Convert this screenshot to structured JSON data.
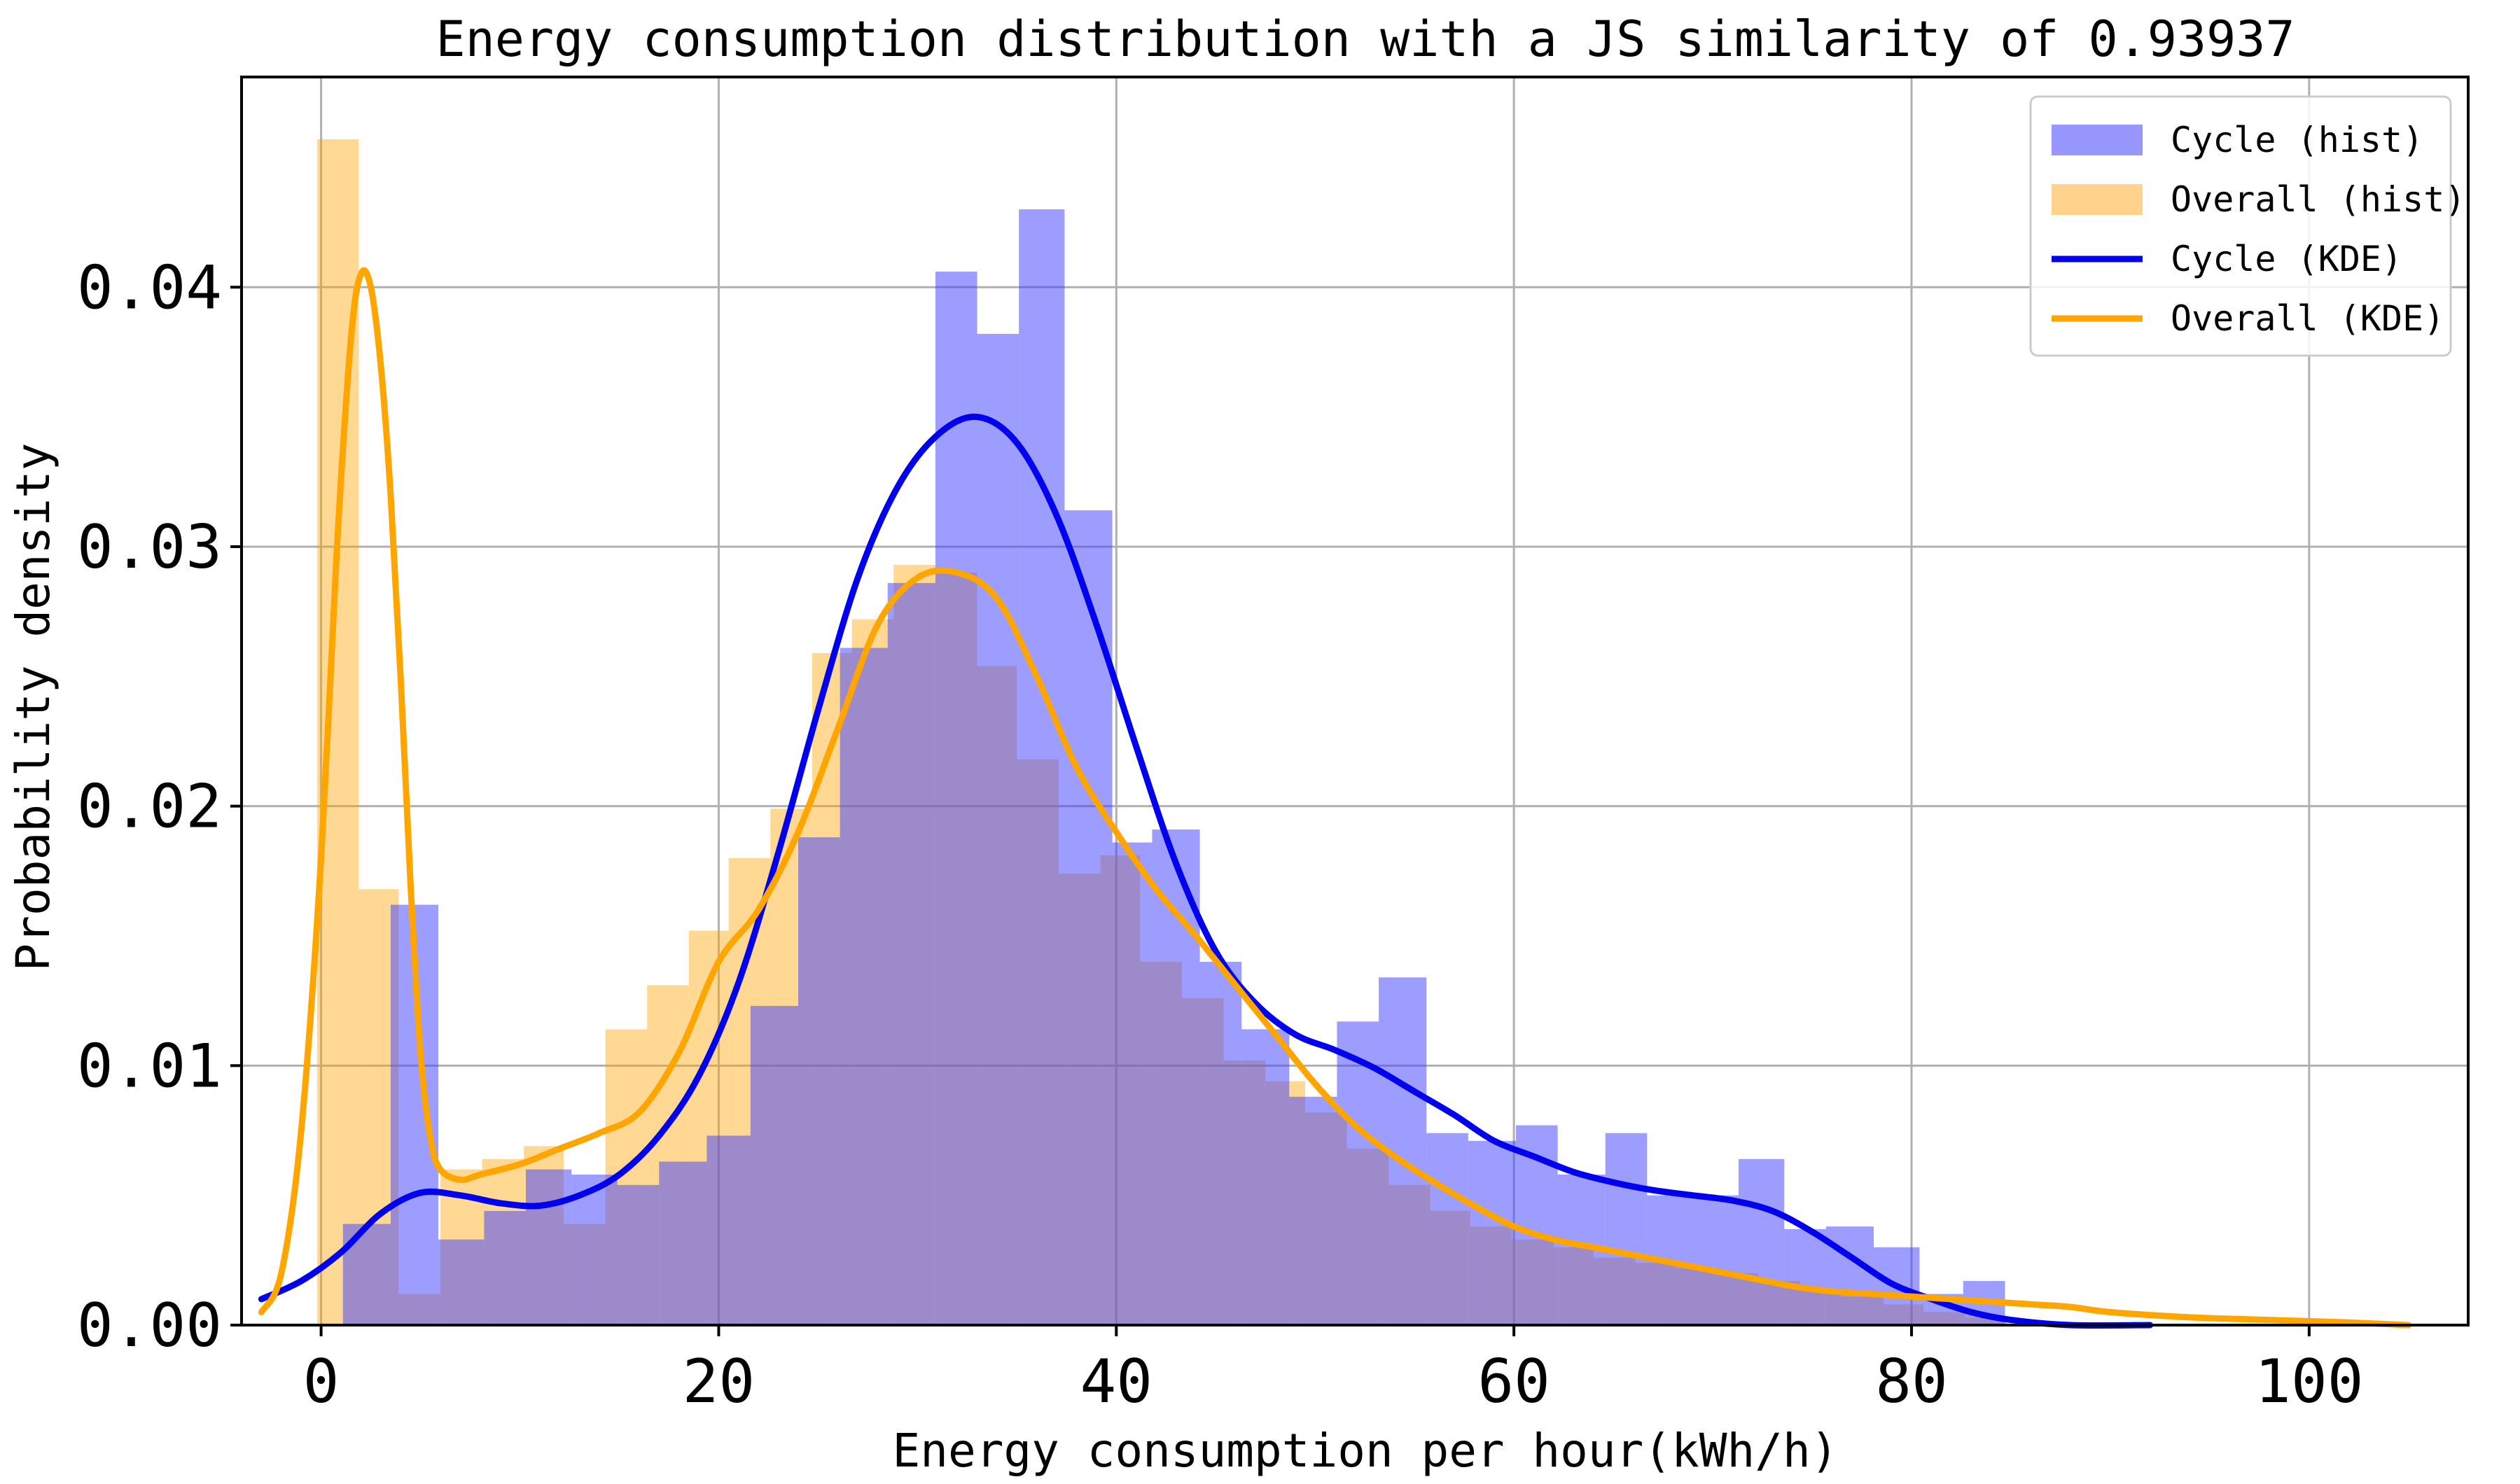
{
  "chart_data": {
    "type": "bar",
    "title": "Energy consumption distribution with a JS similarity of 0.93937",
    "xlabel": "Energy consumption per hour(kWh/h)",
    "ylabel": "Probability density",
    "xlim": [
      -4,
      108
    ],
    "ylim": [
      0,
      0.0481
    ],
    "xticks": [
      0,
      20,
      40,
      60,
      80,
      100
    ],
    "xtick_labels": [
      "0",
      "20",
      "40",
      "60",
      "80",
      "100"
    ],
    "yticks": [
      0.0,
      0.01,
      0.02,
      0.03,
      0.04
    ],
    "ytick_labels": [
      "0.00",
      "0.01",
      "0.02",
      "0.03",
      "0.04"
    ],
    "grid": true,
    "legend_position": "top-right",
    "legend": [
      {
        "label": "Cycle (hist)",
        "kind": "patch",
        "color": "#6b6bff"
      },
      {
        "label": "Overall (hist)",
        "kind": "patch",
        "color": "#ffc05a"
      },
      {
        "label": "Cycle (KDE)",
        "kind": "line",
        "color": "#0000ee"
      },
      {
        "label": "Overall (KDE)",
        "kind": "line",
        "color": "#ffa500"
      }
    ],
    "histograms": [
      {
        "name": "Overall (hist)",
        "color": "#ffa500",
        "opacity": 0.42,
        "bin_edges": [
          -0.2,
          1.9,
          3.9,
          6.0,
          8.1,
          10.2,
          12.2,
          14.3,
          16.4,
          18.5,
          20.5,
          22.6,
          24.7,
          26.7,
          28.8,
          30.9,
          33.0,
          35.0,
          37.1,
          39.2,
          41.2,
          43.3,
          45.4,
          47.5,
          49.5,
          51.6,
          53.7,
          55.8,
          57.8,
          59.9,
          62.0,
          64.0,
          66.1,
          68.2,
          70.3,
          72.3,
          74.4,
          76.5,
          78.6,
          80.6,
          82.7,
          84.8
        ],
        "values": [
          0.0457,
          0.0168,
          0.0012,
          0.006,
          0.0064,
          0.0069,
          0.0039,
          0.0114,
          0.0131,
          0.0152,
          0.018,
          0.0199,
          0.0259,
          0.0272,
          0.0293,
          0.029,
          0.0254,
          0.0218,
          0.0174,
          0.0181,
          0.014,
          0.0126,
          0.0102,
          0.0094,
          0.0082,
          0.0068,
          0.0054,
          0.0044,
          0.0038,
          0.0033,
          0.003,
          0.0026,
          0.0024,
          0.0022,
          0.002,
          0.0017,
          0.0014,
          0.0011,
          0.0008,
          0.0005,
          0.0003
        ]
      },
      {
        "name": "Cycle (hist)",
        "color": "#3b3bff",
        "opacity": 0.5,
        "bin_edges": [
          1.1,
          3.5,
          5.9,
          8.2,
          10.3,
          12.6,
          14.9,
          17.0,
          19.4,
          21.6,
          24.0,
          26.1,
          28.5,
          30.9,
          33.0,
          35.1,
          37.4,
          39.8,
          41.8,
          44.2,
          46.3,
          48.7,
          51.1,
          53.2,
          55.6,
          57.7,
          60.1,
          62.2,
          64.6,
          66.7,
          69.1,
          71.3,
          73.6,
          75.7,
          78.1,
          80.4,
          82.6,
          84.7
        ],
        "values": [
          0.0039,
          0.0162,
          0.0033,
          0.0044,
          0.006,
          0.0058,
          0.0054,
          0.0063,
          0.0073,
          0.0123,
          0.0188,
          0.0261,
          0.0286,
          0.0406,
          0.0382,
          0.043,
          0.0314,
          0.0186,
          0.0191,
          0.014,
          0.0114,
          0.0088,
          0.0117,
          0.0134,
          0.0074,
          0.0071,
          0.0077,
          0.0058,
          0.0074,
          0.005,
          0.005,
          0.0064,
          0.0037,
          0.0038,
          0.003,
          0.0012,
          0.0017
        ]
      }
    ],
    "kde": [
      {
        "name": "Cycle (KDE)",
        "color": "#0000ee",
        "x": [
          -3.0,
          -1.0,
          1.0,
          3.0,
          5.0,
          7.0,
          9.0,
          11.0,
          13.0,
          15.0,
          17.0,
          19.0,
          21.0,
          23.0,
          25.0,
          27.0,
          29.0,
          31.0,
          33.0,
          35.0,
          37.0,
          39.0,
          41.0,
          43.0,
          45.0,
          47.0,
          49.0,
          51.0,
          53.0,
          55.0,
          57.0,
          59.0,
          61.0,
          63.0,
          65.0,
          67.0,
          69.0,
          71.0,
          73.0,
          75.0,
          77.0,
          79.0,
          81.0,
          83.0,
          85.0,
          88.0,
          92.0
        ],
        "y": [
          0.001,
          0.0017,
          0.0028,
          0.0043,
          0.0051,
          0.005,
          0.0047,
          0.0046,
          0.005,
          0.0058,
          0.0073,
          0.0096,
          0.0132,
          0.0182,
          0.0237,
          0.0288,
          0.0323,
          0.0343,
          0.035,
          0.034,
          0.0312,
          0.027,
          0.0223,
          0.0178,
          0.0144,
          0.0124,
          0.0112,
          0.0106,
          0.0099,
          0.009,
          0.0081,
          0.0071,
          0.0065,
          0.0059,
          0.0055,
          0.0052,
          0.005,
          0.0048,
          0.0044,
          0.0036,
          0.0026,
          0.0016,
          0.001,
          0.0005,
          0.0002,
          0.0,
          0.0
        ]
      },
      {
        "name": "Overall (KDE)",
        "color": "#ffa500",
        "x": [
          -3.0,
          -2.0,
          -1.0,
          0.0,
          0.8,
          1.5,
          2.0,
          2.5,
          3.0,
          3.5,
          4.0,
          4.5,
          5.0,
          5.5,
          6.0,
          7.0,
          8.0,
          10.0,
          12.0,
          14.0,
          16.0,
          18.0,
          20.0,
          22.0,
          24.0,
          26.0,
          28.0,
          30.0,
          32.0,
          34.0,
          36.0,
          38.0,
          40.0,
          42.0,
          44.0,
          46.0,
          48.0,
          50.0,
          52.0,
          54.0,
          56.0,
          58.0,
          60.0,
          62.0,
          64.0,
          66.0,
          68.0,
          70.0,
          72.0,
          74.0,
          76.0,
          78.0,
          80.0,
          82.0,
          84.0,
          86.0,
          88.0,
          90.0,
          94.0,
          98.0,
          102.0,
          105.0
        ],
        "y": [
          0.0005,
          0.002,
          0.0075,
          0.018,
          0.03,
          0.038,
          0.0405,
          0.04,
          0.037,
          0.032,
          0.025,
          0.017,
          0.0105,
          0.0072,
          0.006,
          0.0056,
          0.0058,
          0.0062,
          0.0068,
          0.0074,
          0.0082,
          0.0105,
          0.014,
          0.016,
          0.019,
          0.023,
          0.027,
          0.0288,
          0.029,
          0.028,
          0.025,
          0.0215,
          0.019,
          0.0168,
          0.015,
          0.0131,
          0.0112,
          0.0093,
          0.0077,
          0.0065,
          0.0055,
          0.0046,
          0.0038,
          0.0033,
          0.003,
          0.0027,
          0.0024,
          0.0021,
          0.0018,
          0.0015,
          0.0013,
          0.0012,
          0.0011,
          0.001,
          0.0009,
          0.0008,
          0.0007,
          0.0005,
          0.0003,
          0.0002,
          0.0001,
          0.0
        ]
      }
    ]
  }
}
